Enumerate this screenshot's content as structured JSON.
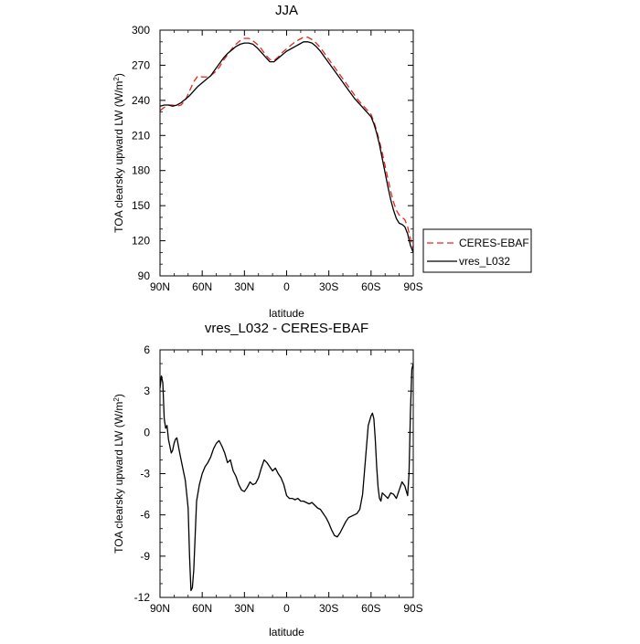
{
  "chart_data": [
    {
      "type": "line",
      "title": "JJA",
      "xlabel": "latitude",
      "ylabel": "TOA clearsky upward LW (W/m²)",
      "xlim": [
        90,
        -90
      ],
      "ylim": [
        90,
        300
      ],
      "x_ticks": [
        90,
        60,
        30,
        0,
        -30,
        -60,
        -90
      ],
      "x_tick_labels": [
        "90N",
        "60N",
        "30N",
        "0",
        "30S",
        "60S",
        "90S"
      ],
      "y_ticks": [
        90,
        120,
        150,
        180,
        210,
        240,
        270,
        300
      ],
      "y_tick_labels": [
        "90",
        "120",
        "150",
        "180",
        "210",
        "240",
        "270",
        "300"
      ],
      "grid": false,
      "legend": {
        "placement": "outside-right",
        "entries": [
          "CERES-EBAF",
          "vres_L032"
        ]
      },
      "series": [
        {
          "name": "CERES-EBAF",
          "color": "#e8261f",
          "dash": "dashed",
          "x": [
            90,
            87,
            84,
            81,
            78,
            75,
            72,
            69,
            66,
            63,
            60,
            57,
            54,
            51,
            48,
            45,
            42,
            39,
            36,
            33,
            30,
            27,
            24,
            21,
            18,
            15,
            12,
            9,
            6,
            3,
            0,
            -3,
            -6,
            -9,
            -12,
            -15,
            -18,
            -21,
            -24,
            -27,
            -30,
            -33,
            -36,
            -39,
            -42,
            -45,
            -48,
            -51,
            -54,
            -57,
            -60,
            -62,
            -64,
            -66,
            -68,
            -70,
            -72,
            -74,
            -76,
            -78,
            -80,
            -82,
            -84,
            -86,
            -88,
            -90
          ],
          "y": [
            231,
            234,
            236,
            236,
            235,
            236,
            240,
            248,
            256,
            261,
            260,
            260,
            261,
            264,
            268,
            274,
            279,
            284,
            288,
            291,
            293,
            293,
            291,
            288,
            284,
            279,
            275,
            274,
            277,
            281,
            284,
            287,
            290,
            292,
            294,
            294,
            292,
            289,
            285,
            280,
            275,
            270,
            265,
            260,
            255,
            250,
            245,
            240,
            236,
            232,
            228,
            222,
            214,
            205,
            195,
            184,
            173,
            162,
            153,
            146,
            142,
            140,
            138,
            132,
            122,
            113
          ]
        },
        {
          "name": "vres_L032",
          "color": "#000000",
          "dash": "solid",
          "x": [
            90,
            87,
            84,
            81,
            78,
            75,
            72,
            69,
            66,
            63,
            60,
            57,
            54,
            51,
            48,
            45,
            42,
            39,
            36,
            33,
            30,
            27,
            24,
            21,
            18,
            15,
            12,
            9,
            6,
            3,
            0,
            -3,
            -6,
            -9,
            -12,
            -15,
            -18,
            -21,
            -24,
            -27,
            -30,
            -33,
            -36,
            -39,
            -42,
            -45,
            -48,
            -51,
            -54,
            -57,
            -60,
            -62,
            -64,
            -66,
            -68,
            -70,
            -72,
            -74,
            -76,
            -78,
            -80,
            -82,
            -84,
            -86,
            -88,
            -90
          ],
          "y": [
            235,
            236,
            236,
            235,
            236,
            238,
            241,
            244,
            248,
            252,
            255,
            258,
            261,
            266,
            271,
            276,
            280,
            283,
            286,
            288,
            289,
            289,
            288,
            285,
            281,
            277,
            273,
            273,
            276,
            279,
            282,
            284,
            286,
            288,
            290,
            290,
            289,
            286,
            282,
            277,
            272,
            267,
            262,
            257,
            252,
            247,
            242,
            238,
            234,
            230,
            226,
            220,
            212,
            202,
            190,
            178,
            166,
            155,
            146,
            139,
            135,
            134,
            132,
            126,
            116,
            110
          ]
        }
      ]
    },
    {
      "type": "line",
      "title": "vres_L032 - CERES-EBAF",
      "xlabel": "latitude",
      "ylabel": "TOA clearsky upward LW (W/m²)",
      "xlim": [
        90,
        -90
      ],
      "ylim": [
        -12,
        6
      ],
      "x_ticks": [
        90,
        60,
        30,
        0,
        -30,
        -60,
        -90
      ],
      "x_tick_labels": [
        "90N",
        "60N",
        "30N",
        "0",
        "30S",
        "60S",
        "90S"
      ],
      "y_ticks": [
        -12,
        -9,
        -6,
        -3,
        0,
        3,
        6
      ],
      "y_tick_labels": [
        "-12",
        "-9",
        "-6",
        "-3",
        "0",
        "3",
        "6"
      ],
      "grid": false,
      "series": [
        {
          "color": "#000000",
          "dash": "solid",
          "x": [
            90,
            89,
            88,
            87,
            86,
            85,
            84,
            83,
            82,
            81,
            80,
            79,
            78,
            76,
            74,
            72,
            70,
            69,
            68,
            67,
            66,
            65,
            64,
            62,
            60,
            58,
            56,
            54,
            52,
            50,
            48,
            46,
            44,
            42,
            40,
            38,
            36,
            34,
            32,
            30,
            28,
            26,
            24,
            22,
            20,
            18,
            16,
            14,
            12,
            10,
            8,
            6,
            4,
            2,
            0,
            -2,
            -4,
            -6,
            -8,
            -10,
            -12,
            -14,
            -16,
            -18,
            -20,
            -22,
            -24,
            -26,
            -28,
            -30,
            -32,
            -34,
            -36,
            -38,
            -40,
            -42,
            -44,
            -46,
            -48,
            -50,
            -52,
            -54,
            -56,
            -58,
            -60,
            -61,
            -62,
            -63,
            -64,
            -65,
            -66,
            -67,
            -68,
            -70,
            -72,
            -74,
            -76,
            -78,
            -80,
            -82,
            -84,
            -86,
            -87,
            -88,
            -89,
            -90
          ],
          "y": [
            3.2,
            4.1,
            3.6,
            1.0,
            0.3,
            0.5,
            -0.5,
            -1.0,
            -1.5,
            -1.3,
            -0.8,
            -0.5,
            -0.4,
            -1.5,
            -2.5,
            -3.5,
            -5.5,
            -9.0,
            -11.5,
            -11.3,
            -10.0,
            -7.5,
            -5.0,
            -3.8,
            -3.0,
            -2.5,
            -2.2,
            -1.8,
            -1.2,
            -0.8,
            -0.6,
            -1.0,
            -1.5,
            -2.2,
            -2.0,
            -2.8,
            -3.2,
            -3.8,
            -4.2,
            -4.3,
            -4.0,
            -3.6,
            -3.8,
            -3.7,
            -3.3,
            -2.6,
            -2.0,
            -2.2,
            -2.5,
            -2.8,
            -2.6,
            -3.0,
            -3.3,
            -3.8,
            -4.6,
            -4.8,
            -4.8,
            -4.9,
            -4.8,
            -5.0,
            -5.0,
            -5.1,
            -5.2,
            -5.1,
            -5.3,
            -5.5,
            -5.6,
            -5.9,
            -6.2,
            -6.6,
            -7.1,
            -7.5,
            -7.6,
            -7.3,
            -6.9,
            -6.5,
            -6.2,
            -6.1,
            -6.0,
            -5.9,
            -5.6,
            -4.5,
            -2.0,
            0.5,
            1.2,
            1.4,
            1.0,
            -0.5,
            -2.5,
            -4.0,
            -4.8,
            -5.0,
            -4.4,
            -4.6,
            -4.8,
            -4.4,
            -4.5,
            -4.8,
            -4.2,
            -3.6,
            -3.9,
            -4.6,
            -3.0,
            1.5,
            4.6,
            5.0
          ]
        }
      ]
    }
  ]
}
